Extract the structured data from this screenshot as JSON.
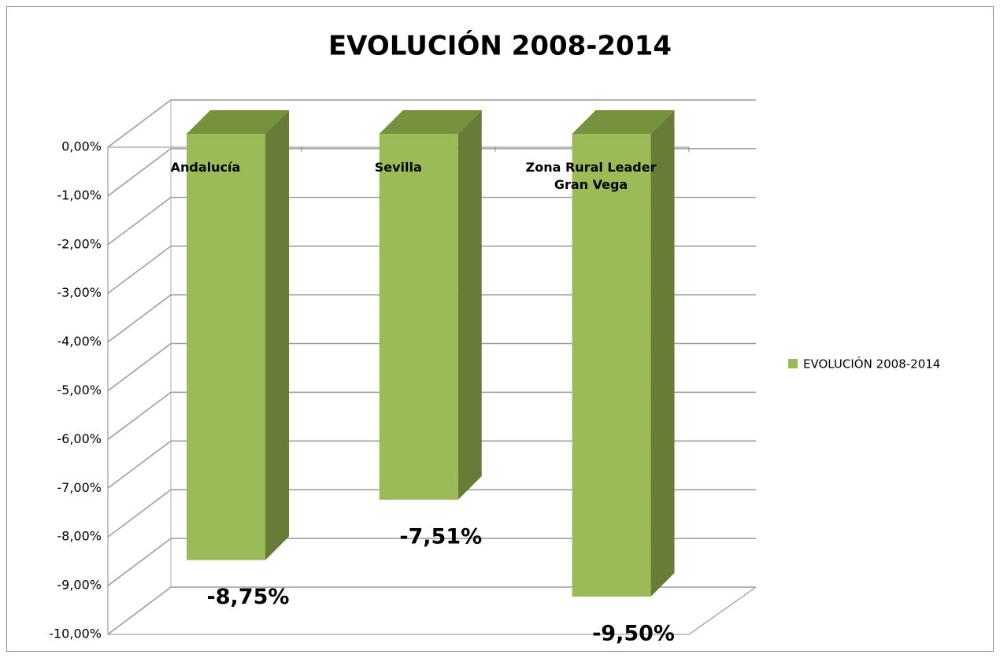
{
  "chart_data": {
    "type": "bar3d",
    "title": "EVOLUCIÓN 2008-2014",
    "categories": [
      "Andalucía",
      "Sevilla",
      "Zona Rural  Leader Gran Vega"
    ],
    "series": [
      {
        "name": "EVOLUCIÓN 2008-2014",
        "color": "#9bbb59",
        "values": [
          -8.75,
          -7.51,
          -9.5
        ],
        "value_labels": [
          "-8,75%",
          "-7,51%",
          "-9,50%"
        ]
      }
    ],
    "ylim": [
      -10,
      0
    ],
    "yticks": [
      {
        "value": 0,
        "label": "0,00%"
      },
      {
        "value": -1,
        "label": "-1,00%"
      },
      {
        "value": -2,
        "label": "-2,00%"
      },
      {
        "value": -3,
        "label": "-3,00%"
      },
      {
        "value": -4,
        "label": "-4,00%"
      },
      {
        "value": -5,
        "label": "-5,00%"
      },
      {
        "value": -6,
        "label": "-6,00%"
      },
      {
        "value": -7,
        "label": "-7,00%"
      },
      {
        "value": -8,
        "label": "-8,00%"
      },
      {
        "value": -9,
        "label": "-9,00%"
      },
      {
        "value": -10,
        "label": "-10,00%"
      }
    ],
    "grid": true,
    "legend": "right"
  }
}
